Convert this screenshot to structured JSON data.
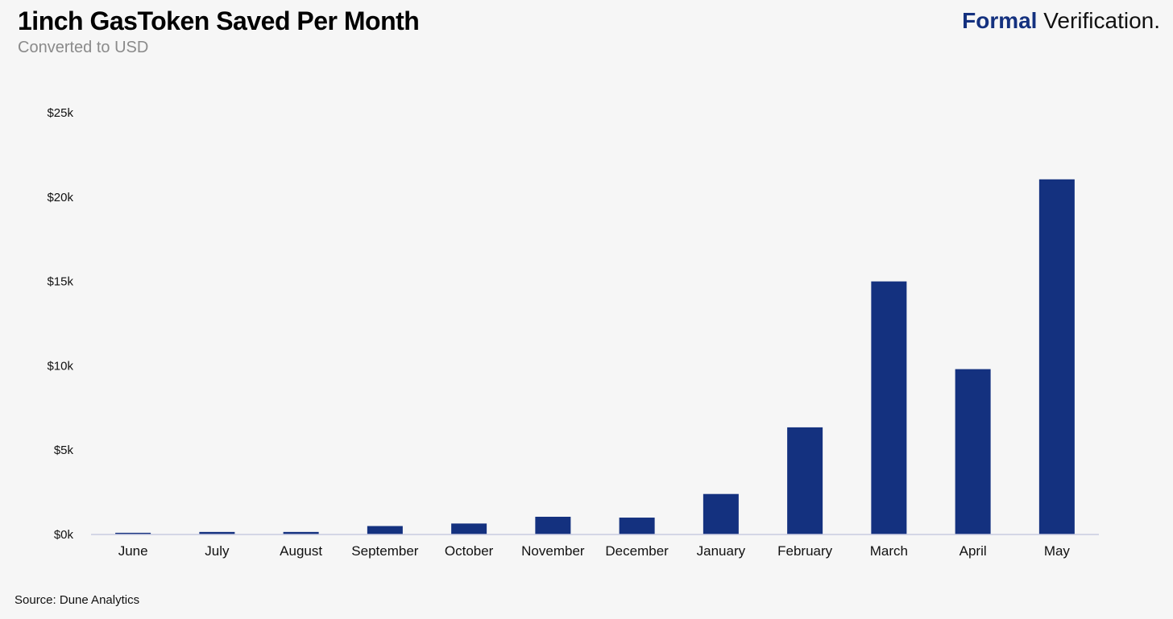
{
  "header": {
    "title": "1inch GasToken Saved Per Month",
    "subtitle": "Converted to USD"
  },
  "brand": {
    "part1": "Formal",
    "part2": " Verification."
  },
  "footer": {
    "source": "Source: Dune Analytics"
  },
  "colors": {
    "bar": "#14317f",
    "axis": "#c9cbe0",
    "background": "#f6f6f6"
  },
  "chart_data": {
    "type": "bar",
    "title": "1inch GasToken Saved Per Month",
    "subtitle": "Converted to USD",
    "xlabel": "",
    "ylabel": "",
    "categories": [
      "June",
      "July",
      "August",
      "September",
      "October",
      "November",
      "December",
      "January",
      "February",
      "March",
      "April",
      "May"
    ],
    "values": [
      100,
      150,
      150,
      500,
      650,
      1050,
      1000,
      2400,
      6350,
      15000,
      9800,
      21050
    ],
    "ylim": [
      0,
      25000
    ],
    "yticks": [
      0,
      5000,
      10000,
      15000,
      20000,
      25000
    ],
    "ytick_labels": [
      "$0k",
      "$5k",
      "$10k",
      "$15k",
      "$20k",
      "$25k"
    ],
    "grid": false,
    "legend": "none"
  }
}
